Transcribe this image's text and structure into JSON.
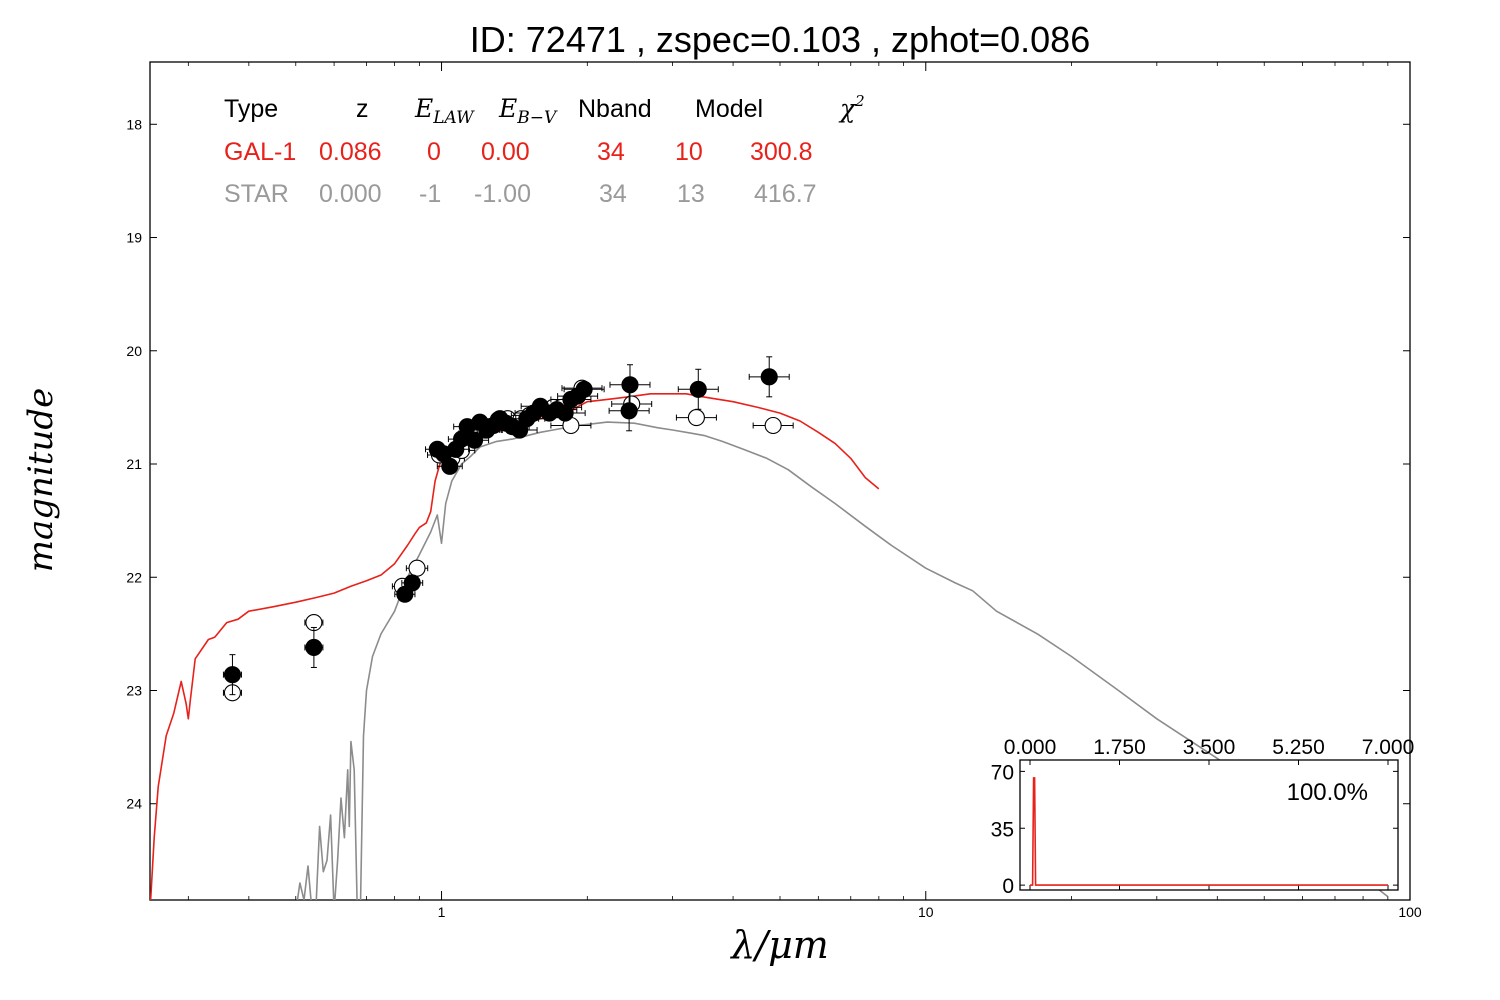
{
  "chart_data": [
    {
      "type": "scatter",
      "title": "ID:  72471 , zspec=0.103 , zphot=0.086",
      "xlabel": "λ/μm",
      "ylabel": "magnitude",
      "xscale": "log",
      "xlim": [
        0.25,
        100
      ],
      "ylim": [
        24.85,
        17.45
      ],
      "y_inverted": true,
      "xticks": [
        {
          "value": 1,
          "label": "1"
        },
        {
          "value": 10,
          "label": "10"
        },
        {
          "value": 100,
          "label": "100"
        }
      ],
      "yticks": [
        {
          "value": 18,
          "label": "18"
        },
        {
          "value": 19,
          "label": "19"
        },
        {
          "value": 20,
          "label": "20"
        },
        {
          "value": 21,
          "label": "21"
        },
        {
          "value": 22,
          "label": "22"
        },
        {
          "value": 23,
          "label": "23"
        },
        {
          "value": 24,
          "label": "24"
        }
      ],
      "colors": {
        "galaxy": "#e8211a",
        "star": "#8c8c8c",
        "points": "#000000"
      },
      "fit_table": {
        "headers": [
          "Type",
          "z",
          "E_LAW",
          "E_B−V",
          "Nband",
          "Model",
          "χ²"
        ],
        "rows": [
          {
            "type": "GAL-1",
            "z": "0.086",
            "elaw": "0",
            "ebv": "0.00",
            "nband": "34",
            "model": "10",
            "chi2": "300.8",
            "color": "#e8211a"
          },
          {
            "type": "STAR",
            "z": "0.000",
            "elaw": "-1",
            "ebv": "-1.00",
            "nband": "34",
            "model": "13",
            "chi2": "416.7",
            "color": "#9a9a9a"
          }
        ]
      },
      "series": [
        {
          "name": "GAL-1",
          "kind": "line",
          "color": "#e8211a",
          "points": [
            [
              0.25,
              24.95
            ],
            [
              0.255,
              24.3
            ],
            [
              0.26,
              23.85
            ],
            [
              0.27,
              23.4
            ],
            [
              0.28,
              23.2
            ],
            [
              0.29,
              22.92
            ],
            [
              0.297,
              23.12
            ],
            [
              0.3,
              23.25
            ],
            [
              0.303,
              23.08
            ],
            [
              0.31,
              22.72
            ],
            [
              0.33,
              22.55
            ],
            [
              0.34,
              22.53
            ],
            [
              0.36,
              22.4
            ],
            [
              0.38,
              22.37
            ],
            [
              0.4,
              22.3
            ],
            [
              0.45,
              22.26
            ],
            [
              0.5,
              22.22
            ],
            [
              0.55,
              22.18
            ],
            [
              0.6,
              22.14
            ],
            [
              0.65,
              22.08
            ],
            [
              0.7,
              22.03
            ],
            [
              0.75,
              21.98
            ],
            [
              0.8,
              21.88
            ],
            [
              0.85,
              21.72
            ],
            [
              0.88,
              21.62
            ],
            [
              0.9,
              21.56
            ],
            [
              0.93,
              21.52
            ],
            [
              0.95,
              21.42
            ],
            [
              0.97,
              21.15
            ],
            [
              1.0,
              20.95
            ],
            [
              1.05,
              20.88
            ],
            [
              1.1,
              20.84
            ],
            [
              1.15,
              20.78
            ],
            [
              1.2,
              20.74
            ],
            [
              1.3,
              20.72
            ],
            [
              1.4,
              20.67
            ],
            [
              1.5,
              20.63
            ],
            [
              1.6,
              20.6
            ],
            [
              1.7,
              20.58
            ],
            [
              1.8,
              20.55
            ],
            [
              1.9,
              20.5
            ],
            [
              2.0,
              20.45
            ],
            [
              2.1,
              20.44
            ],
            [
              2.3,
              20.42
            ],
            [
              2.5,
              20.4
            ],
            [
              2.7,
              20.38
            ],
            [
              2.9,
              20.38
            ],
            [
              3.2,
              20.38
            ],
            [
              3.5,
              20.41
            ],
            [
              4.0,
              20.45
            ],
            [
              4.5,
              20.5
            ],
            [
              5.0,
              20.55
            ],
            [
              5.5,
              20.62
            ],
            [
              6.0,
              20.72
            ],
            [
              6.5,
              20.82
            ],
            [
              7.0,
              20.95
            ],
            [
              7.5,
              21.12
            ],
            [
              8.0,
              21.22
            ]
          ]
        },
        {
          "name": "STAR",
          "kind": "line",
          "color": "#8c8c8c",
          "points": [
            [
              0.5,
              24.95
            ],
            [
              0.51,
              24.7
            ],
            [
              0.52,
              24.85
            ],
            [
              0.53,
              24.55
            ],
            [
              0.54,
              24.95
            ],
            [
              0.55,
              24.95
            ],
            [
              0.56,
              24.2
            ],
            [
              0.57,
              24.6
            ],
            [
              0.58,
              24.5
            ],
            [
              0.59,
              24.1
            ],
            [
              0.6,
              24.95
            ],
            [
              0.61,
              24.5
            ],
            [
              0.62,
              23.95
            ],
            [
              0.63,
              24.3
            ],
            [
              0.64,
              23.7
            ],
            [
              0.645,
              24.2
            ],
            [
              0.65,
              23.45
            ],
            [
              0.66,
              23.7
            ],
            [
              0.67,
              24.95
            ],
            [
              0.68,
              24.95
            ],
            [
              0.69,
              23.4
            ],
            [
              0.7,
              23.0
            ],
            [
              0.72,
              22.7
            ],
            [
              0.75,
              22.5
            ],
            [
              0.8,
              22.3
            ],
            [
              0.85,
              22.0
            ],
            [
              0.9,
              21.8
            ],
            [
              0.95,
              21.6
            ],
            [
              0.98,
              21.45
            ],
            [
              1.0,
              21.7
            ],
            [
              1.02,
              21.35
            ],
            [
              1.05,
              21.15
            ],
            [
              1.1,
              21.0
            ],
            [
              1.15,
              20.93
            ],
            [
              1.2,
              20.85
            ],
            [
              1.3,
              20.8
            ],
            [
              1.4,
              20.78
            ],
            [
              1.5,
              20.75
            ],
            [
              1.6,
              20.72
            ],
            [
              1.7,
              20.7
            ],
            [
              1.8,
              20.68
            ],
            [
              1.9,
              20.66
            ],
            [
              2.0,
              20.65
            ],
            [
              2.2,
              20.63
            ],
            [
              2.5,
              20.64
            ],
            [
              2.8,
              20.68
            ],
            [
              3.0,
              20.7
            ],
            [
              3.3,
              20.73
            ],
            [
              3.5,
              20.75
            ],
            [
              3.8,
              20.8
            ],
            [
              4.2,
              20.87
            ],
            [
              4.7,
              20.95
            ],
            [
              5.2,
              21.05
            ],
            [
              5.8,
              21.2
            ],
            [
              6.5,
              21.35
            ],
            [
              7.5,
              21.55
            ],
            [
              8.5,
              21.72
            ],
            [
              10.0,
              21.92
            ],
            [
              11.5,
              22.05
            ],
            [
              12.5,
              22.12
            ],
            [
              14.0,
              22.3
            ],
            [
              17.0,
              22.5
            ],
            [
              20.0,
              22.7
            ],
            [
              25.0,
              23.0
            ],
            [
              30.0,
              23.25
            ],
            [
              40.0,
              23.6
            ],
            [
              50.0,
              23.9
            ],
            [
              60.0,
              24.2
            ],
            [
              70.0,
              24.45
            ],
            [
              80.0,
              24.65
            ],
            [
              90.0,
              24.82
            ]
          ]
        },
        {
          "name": "observed magnitudes",
          "kind": "filled",
          "color": "#000000",
          "points": [
            [
              0.37,
              22.86
            ],
            [
              0.545,
              22.62
            ],
            [
              0.84,
              22.15
            ],
            [
              0.87,
              22.05
            ],
            [
              0.98,
              20.87
            ],
            [
              1.01,
              20.91
            ],
            [
              1.04,
              21.02
            ],
            [
              1.07,
              20.87
            ],
            [
              1.1,
              20.78
            ],
            [
              1.13,
              20.67
            ],
            [
              1.17,
              20.79
            ],
            [
              1.2,
              20.63
            ],
            [
              1.24,
              20.7
            ],
            [
              1.28,
              20.66
            ],
            [
              1.32,
              20.6
            ],
            [
              1.36,
              20.64
            ],
            [
              1.4,
              20.67
            ],
            [
              1.45,
              20.7
            ],
            [
              1.5,
              20.6
            ],
            [
              1.55,
              20.55
            ],
            [
              1.6,
              20.49
            ],
            [
              1.67,
              20.55
            ],
            [
              1.73,
              20.52
            ],
            [
              1.8,
              20.55
            ],
            [
              1.85,
              20.43
            ],
            [
              1.91,
              20.4
            ],
            [
              1.97,
              20.34
            ],
            [
              2.44,
              20.53
            ],
            [
              2.45,
              20.3
            ],
            [
              3.39,
              20.34
            ],
            [
              4.75,
              20.23
            ]
          ]
        },
        {
          "name": "model magnitudes",
          "kind": "open",
          "color": "#000000",
          "points": [
            [
              0.37,
              23.02
            ],
            [
              0.545,
              22.4
            ],
            [
              0.83,
              22.08
            ],
            [
              0.89,
              21.92
            ],
            [
              0.99,
              20.92
            ],
            [
              1.05,
              20.95
            ],
            [
              1.1,
              20.88
            ],
            [
              1.16,
              20.73
            ],
            [
              1.23,
              20.7
            ],
            [
              1.31,
              20.61
            ],
            [
              1.37,
              20.6
            ],
            [
              1.46,
              20.6
            ],
            [
              1.52,
              20.57
            ],
            [
              1.7,
              20.5
            ],
            [
              1.77,
              20.5
            ],
            [
              1.85,
              20.66
            ],
            [
              1.95,
              20.33
            ],
            [
              2.47,
              20.47
            ],
            [
              3.36,
              20.59
            ],
            [
              4.84,
              20.66
            ]
          ]
        }
      ]
    },
    {
      "type": "line",
      "name": "photometric redshift probability",
      "xlim": [
        0.0,
        7.0
      ],
      "ylim": [
        -3,
        77
      ],
      "xticks": [
        {
          "value": 0.0,
          "label": "0.000"
        },
        {
          "value": 1.75,
          "label": "1.750"
        },
        {
          "value": 3.5,
          "label": "3.500"
        },
        {
          "value": 5.25,
          "label": "5.250"
        },
        {
          "value": 7.0,
          "label": "7.000"
        }
      ],
      "yticks": [
        {
          "value": 0,
          "label": "0"
        },
        {
          "value": 35,
          "label": "35"
        },
        {
          "value": 70,
          "label": "70"
        }
      ],
      "annotation": "100.0%",
      "color": "#e8211a",
      "points": [
        [
          0.0,
          0
        ],
        [
          0.05,
          0
        ],
        [
          0.07,
          66
        ],
        [
          0.09,
          66
        ],
        [
          0.11,
          0
        ],
        [
          7.0,
          0
        ]
      ]
    }
  ]
}
